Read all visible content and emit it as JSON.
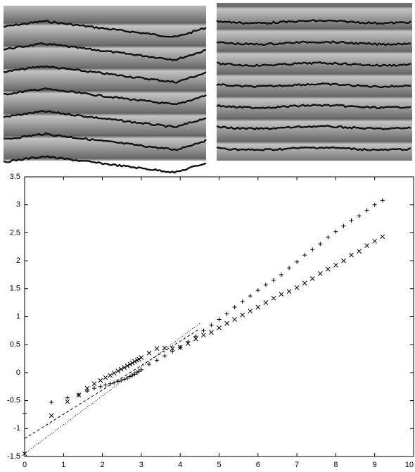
{
  "chart_data": {
    "type": "scatter",
    "x": [
      0,
      0.69,
      1.1,
      1.39,
      1.61,
      1.79,
      1.95,
      2.08,
      2.2,
      2.3,
      2.4,
      2.48,
      2.56,
      2.64,
      2.71,
      2.77,
      2.83,
      2.89,
      2.94,
      3.0,
      3.2,
      3.4,
      3.6,
      3.8,
      4.0,
      4.2,
      4.4,
      4.6,
      4.8,
      5.0,
      5.2,
      5.4,
      5.6,
      5.8,
      6.0,
      6.2,
      6.4,
      6.6,
      6.8,
      7.0,
      7.2,
      7.4,
      7.6,
      7.8,
      8.0,
      8.2,
      8.4,
      8.6,
      8.8,
      9.0,
      9.2
    ],
    "series": [
      {
        "marker": "plus",
        "color": "#000000",
        "values": [
          -0.73,
          -0.53,
          -0.45,
          -0.4,
          -0.33,
          -0.28,
          -0.25,
          -0.22,
          -0.2,
          -0.18,
          -0.16,
          -0.14,
          -0.12,
          -0.1,
          -0.07,
          -0.05,
          -0.03,
          0,
          0.02,
          0.05,
          0.15,
          0.22,
          0.3,
          0.38,
          0.45,
          0.55,
          0.65,
          0.75,
          0.85,
          0.95,
          1.05,
          1.17,
          1.27,
          1.37,
          1.47,
          1.57,
          1.65,
          1.75,
          1.87,
          1.98,
          2.1,
          2.2,
          2.3,
          2.42,
          2.52,
          2.62,
          2.72,
          2.8,
          2.9,
          3.0,
          3.08
        ]
      },
      {
        "marker": "cross",
        "color": "#000000",
        "values": [
          -1.45,
          -0.77,
          -0.52,
          -0.4,
          -0.28,
          -0.2,
          -0.14,
          -0.09,
          -0.05,
          -0.01,
          0.03,
          0.06,
          0.09,
          0.12,
          0.15,
          0.17,
          0.2,
          0.22,
          0.24,
          0.27,
          0.35,
          0.43,
          0.44,
          0.43,
          0.45,
          0.52,
          0.6,
          0.67,
          0.72,
          0.8,
          0.88,
          0.95,
          1.03,
          1.1,
          1.17,
          1.25,
          1.33,
          1.4,
          1.45,
          1.52,
          1.6,
          1.68,
          1.77,
          1.85,
          1.92,
          2.0,
          2.1,
          2.17,
          2.27,
          2.35,
          2.43
        ]
      }
    ],
    "fits": [
      {
        "style": "dashed",
        "x": [
          0,
          4.5
        ],
        "values": [
          -1.18,
          0.78
        ]
      },
      {
        "style": "dotted",
        "x": [
          0,
          4.5
        ],
        "values": [
          -1.45,
          0.88
        ]
      }
    ],
    "xlim": [
      0,
      10
    ],
    "xticks": [
      0,
      1,
      2,
      3,
      4,
      5,
      6,
      7,
      8,
      9,
      10
    ],
    "ylim": [
      -1.5,
      3.5
    ],
    "yticks": [
      -1.5,
      -1,
      -0.5,
      0,
      0.5,
      1,
      1.5,
      2,
      2.5,
      3,
      3.5
    ]
  }
}
